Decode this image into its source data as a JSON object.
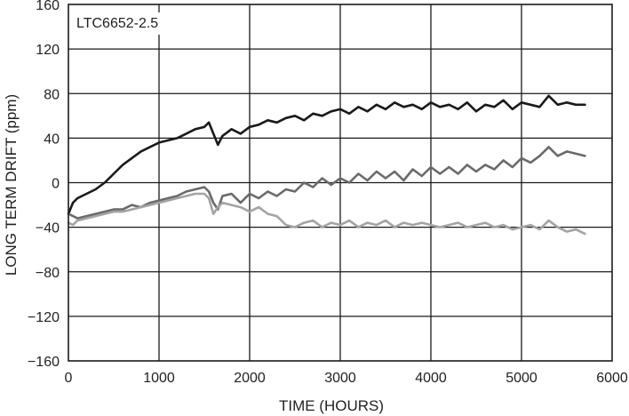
{
  "chart_data": {
    "type": "line",
    "title": "",
    "annotation": "LTC6652-2.5",
    "xlabel": "TIME (HOURS)",
    "ylabel": "LONG TERM DRIFT (ppm)",
    "xlim": [
      0,
      6000
    ],
    "ylim": [
      -160,
      160
    ],
    "xticks": [
      "0",
      "1000",
      "2000",
      "3000",
      "4000",
      "5000",
      "6000"
    ],
    "yticks": [
      "160",
      "120",
      "80",
      "40",
      "0",
      "−40",
      "−80",
      "−120",
      "−160"
    ],
    "grid": true,
    "series": [
      {
        "color": "#1a1a1a",
        "x": [
          0,
          50,
          100,
          200,
          300,
          400,
          500,
          600,
          700,
          800,
          900,
          1000,
          1100,
          1200,
          1300,
          1400,
          1500,
          1550,
          1600,
          1650,
          1700,
          1800,
          1900,
          2000,
          2100,
          2200,
          2300,
          2400,
          2500,
          2600,
          2700,
          2800,
          2900,
          3000,
          3100,
          3200,
          3300,
          3400,
          3500,
          3600,
          3700,
          3800,
          3900,
          4000,
          4100,
          4200,
          4300,
          4400,
          4500,
          4600,
          4700,
          4800,
          4900,
          5000,
          5100,
          5200,
          5300,
          5400,
          5500,
          5600,
          5700
        ],
        "y": [
          -28,
          -18,
          -14,
          -10,
          -6,
          0,
          8,
          16,
          22,
          28,
          32,
          36,
          38,
          40,
          44,
          48,
          50,
          54,
          44,
          34,
          42,
          48,
          44,
          50,
          52,
          56,
          54,
          58,
          60,
          56,
          62,
          60,
          64,
          66,
          62,
          68,
          64,
          70,
          66,
          72,
          68,
          70,
          66,
          72,
          68,
          70,
          66,
          72,
          64,
          70,
          68,
          74,
          66,
          72,
          70,
          68,
          78,
          70,
          72,
          70,
          70
        ]
      },
      {
        "color": "#6a6a6a",
        "x": [
          0,
          50,
          100,
          200,
          300,
          400,
          500,
          600,
          700,
          800,
          900,
          1000,
          1100,
          1200,
          1300,
          1400,
          1500,
          1550,
          1600,
          1650,
          1700,
          1800,
          1900,
          2000,
          2100,
          2200,
          2300,
          2400,
          2500,
          2600,
          2700,
          2800,
          2900,
          3000,
          3100,
          3200,
          3300,
          3400,
          3500,
          3600,
          3700,
          3800,
          3900,
          4000,
          4100,
          4200,
          4300,
          4400,
          4500,
          4600,
          4700,
          4800,
          4900,
          5000,
          5100,
          5200,
          5300,
          5400,
          5500,
          5600,
          5700
        ],
        "y": [
          -28,
          -30,
          -32,
          -30,
          -28,
          -26,
          -24,
          -24,
          -20,
          -22,
          -18,
          -16,
          -14,
          -12,
          -8,
          -6,
          -4,
          -8,
          -18,
          -24,
          -12,
          -10,
          -18,
          -10,
          -14,
          -8,
          -12,
          -6,
          -8,
          0,
          -4,
          4,
          -2,
          4,
          0,
          8,
          2,
          10,
          4,
          10,
          2,
          12,
          6,
          14,
          8,
          14,
          8,
          16,
          10,
          16,
          12,
          20,
          14,
          22,
          18,
          24,
          32,
          24,
          28,
          26,
          24
        ]
      },
      {
        "color": "#a3a3a3",
        "x": [
          0,
          50,
          100,
          200,
          300,
          400,
          500,
          600,
          700,
          800,
          900,
          1000,
          1100,
          1200,
          1300,
          1400,
          1500,
          1550,
          1600,
          1650,
          1700,
          1800,
          1900,
          2000,
          2100,
          2200,
          2300,
          2400,
          2500,
          2600,
          2700,
          2800,
          2900,
          3000,
          3100,
          3200,
          3300,
          3400,
          3500,
          3600,
          3700,
          3800,
          3900,
          4000,
          4100,
          4200,
          4300,
          4400,
          4500,
          4600,
          4700,
          4800,
          4900,
          5000,
          5100,
          5200,
          5300,
          5400,
          5500,
          5600,
          5700
        ],
        "y": [
          -36,
          -38,
          -34,
          -32,
          -30,
          -28,
          -26,
          -26,
          -24,
          -22,
          -20,
          -18,
          -16,
          -14,
          -12,
          -10,
          -10,
          -14,
          -28,
          -22,
          -18,
          -20,
          -22,
          -26,
          -22,
          -28,
          -30,
          -38,
          -40,
          -36,
          -34,
          -40,
          -36,
          -38,
          -34,
          -40,
          -36,
          -38,
          -34,
          -40,
          -36,
          -38,
          -36,
          -38,
          -40,
          -38,
          -36,
          -40,
          -38,
          -36,
          -40,
          -38,
          -42,
          -40,
          -38,
          -42,
          -34,
          -40,
          -44,
          -42,
          -46
        ]
      }
    ]
  }
}
